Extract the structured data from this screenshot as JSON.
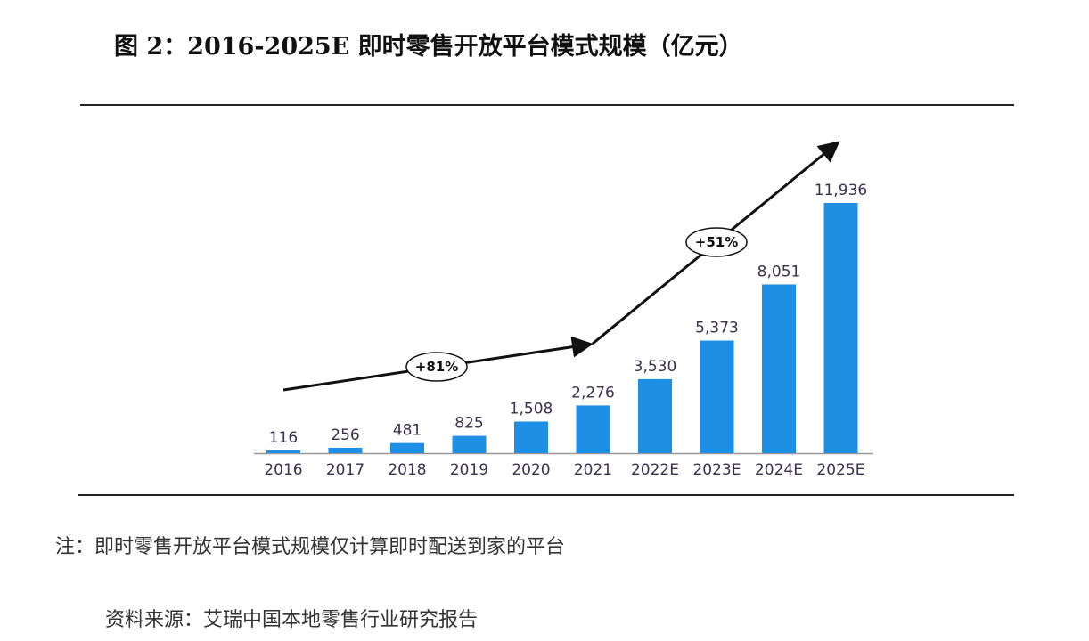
{
  "title": "图 2：2016-2025E 即时零售开放平台模式规模（亿元）",
  "note": "注：即时零售开放平台模式规模仅计算即时配送到家的平台",
  "source": "资料来源：艾瑞中国本地零售行业研究报告",
  "chart_data": {
    "type": "bar",
    "title": "2016-2025E 即时零售开放平台模式规模（亿元）",
    "categories": [
      "2016",
      "2017",
      "2018",
      "2019",
      "2020",
      "2021",
      "2022E",
      "2023E",
      "2024E",
      "2025E"
    ],
    "values": [
      116,
      256,
      481,
      825,
      1508,
      2276,
      3530,
      5373,
      8051,
      11936
    ],
    "value_labels": [
      "116",
      "256",
      "481",
      "825",
      "1,508",
      "2,276",
      "3,530",
      "5,373",
      "8,051",
      "11,936"
    ],
    "xlabel": "",
    "ylabel": "",
    "ylim": [
      0,
      12000
    ],
    "grid": false,
    "bar_color": "#1f8fe6",
    "annotations": [
      {
        "text": "+81%",
        "span": [
          "2016",
          "2021"
        ]
      },
      {
        "text": "+51%",
        "span": [
          "2021",
          "2025E"
        ]
      }
    ]
  }
}
